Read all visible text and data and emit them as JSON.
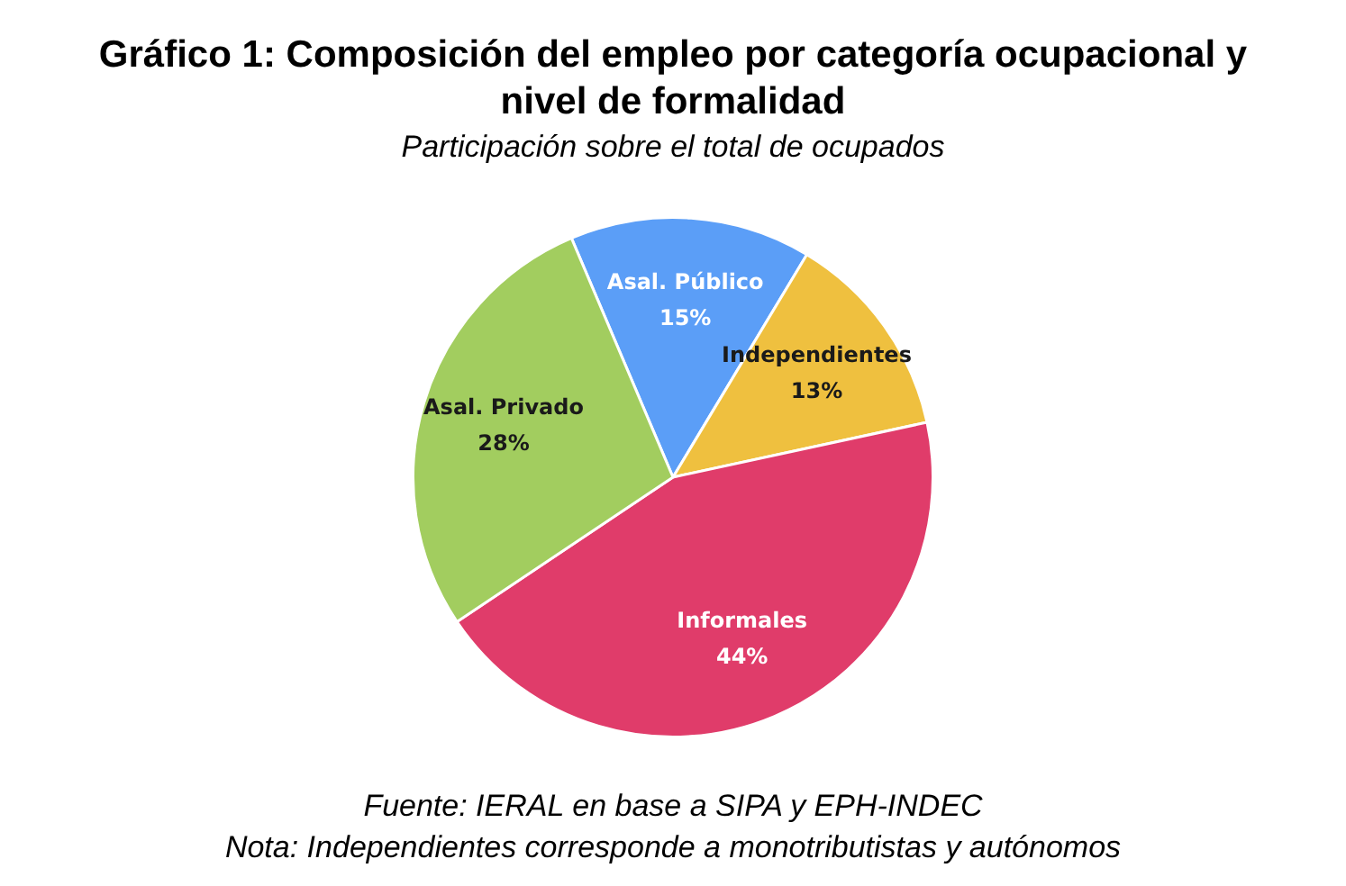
{
  "chart_data": {
    "type": "pie",
    "title": "Gráfico 1: Composición del empleo por categoría ocupacional y nivel de formalidad",
    "subtitle": "Participación sobre el total de ocupados",
    "categories": [
      "Asal. Público",
      "Independientes",
      "Informales",
      "Asal. Privado"
    ],
    "values": [
      15,
      13,
      44,
      28
    ],
    "value_labels": [
      "15%",
      "13%",
      "44%",
      "28%"
    ],
    "colors": [
      "#5b9ef7",
      "#efc03f",
      "#e03c6a",
      "#a2cd5f"
    ],
    "legend": false,
    "annotations": [
      "Fuente: IERAL en base a SIPA y EPH-INDEC",
      "Nota: Independientes corresponde a monotributistas y autónomos"
    ]
  }
}
